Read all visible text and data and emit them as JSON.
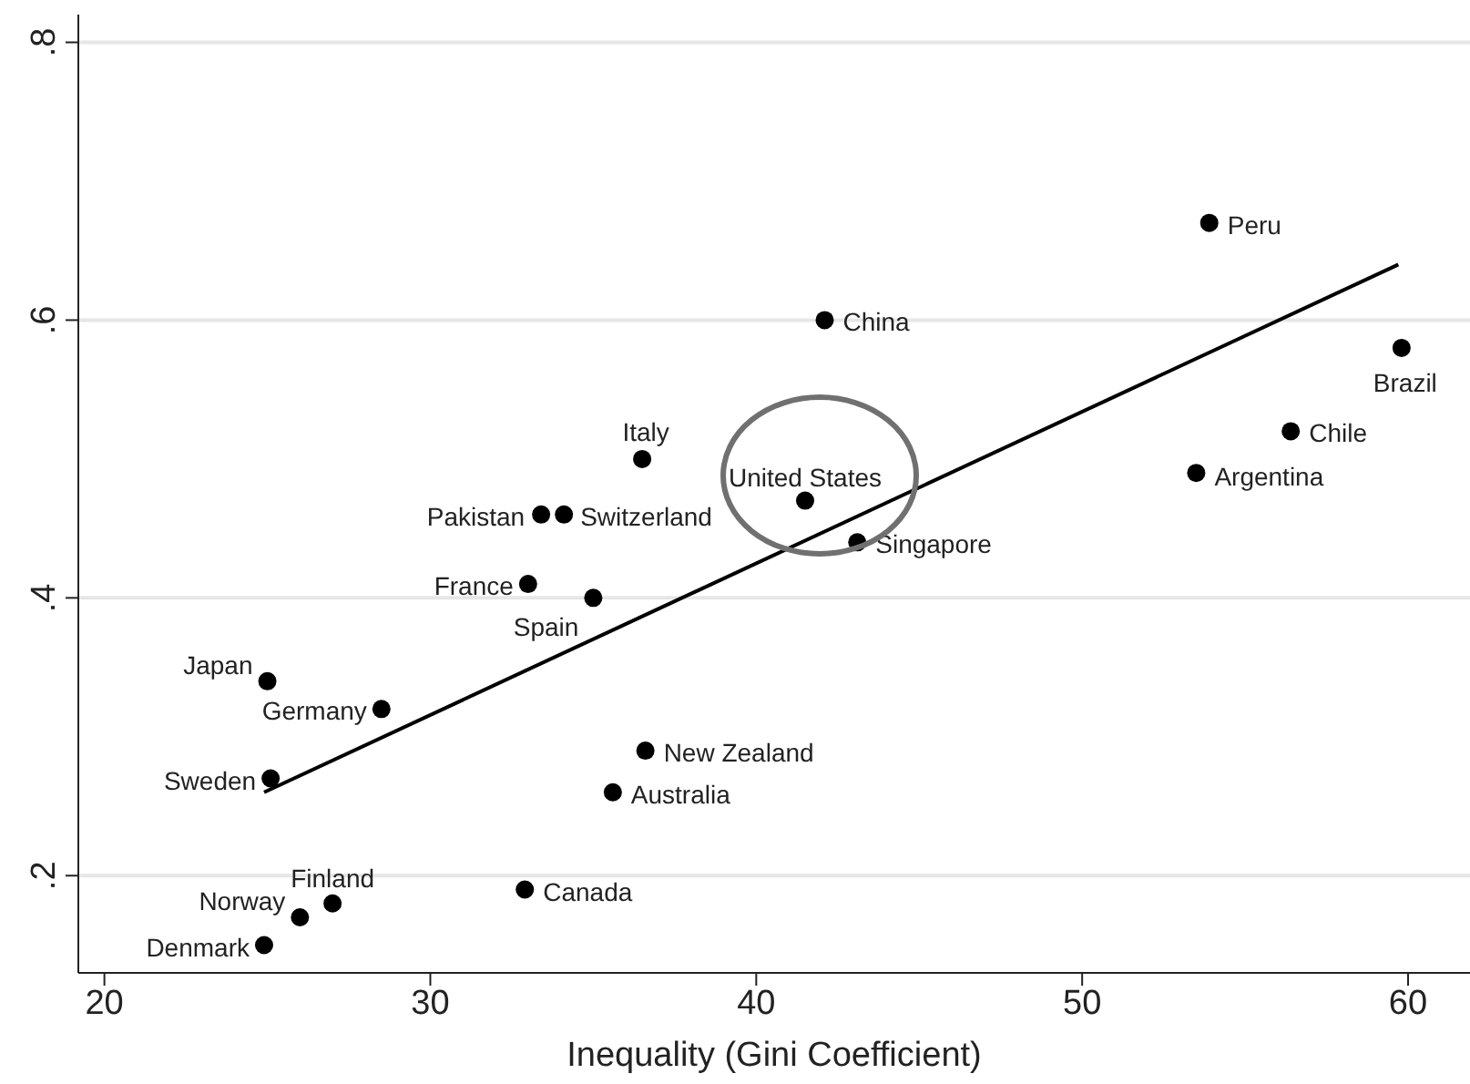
{
  "chart_data": {
    "type": "scatter",
    "xlabel": "Inequality (Gini Coefficient)",
    "xlim": [
      19.2,
      61.9
    ],
    "xticks": [
      20,
      30,
      40,
      50,
      60
    ],
    "ylim": [
      0.13,
      0.82
    ],
    "yticks": [
      {
        "value": 0.2,
        "label": ".2"
      },
      {
        "value": 0.4,
        "label": ".4"
      },
      {
        "value": 0.6,
        "label": ".6"
      },
      {
        "value": 0.8,
        "label": ".8"
      }
    ],
    "grid": "y",
    "marker": "circle",
    "series": [
      {
        "color": "#000000",
        "x": [
          53.9,
          42.1,
          59.8,
          56.4,
          53.5,
          36.5,
          41.5,
          33.4,
          34.1,
          43.1,
          33.0,
          35.0,
          25.0,
          28.5,
          25.1,
          36.6,
          35.6,
          32.9,
          27.0,
          26.0,
          24.9
        ],
        "values": [
          0.67,
          0.6,
          0.58,
          0.52,
          0.49,
          0.5,
          0.47,
          0.46,
          0.46,
          0.44,
          0.41,
          0.4,
          0.34,
          0.32,
          0.27,
          0.29,
          0.26,
          0.19,
          0.18,
          0.17,
          0.15
        ],
        "value_labels": [
          "Peru",
          "China",
          "Brazil",
          "Chile",
          "Argentina",
          "Italy",
          "United States",
          "Pakistan",
          "Switzerland",
          "Singapore",
          "France",
          "Spain",
          "Japan",
          "Germany",
          "Sweden",
          "New Zealand",
          "Australia",
          "Canada",
          "Finland",
          "Norway",
          "Denmark"
        ]
      },
      {
        "type": "line",
        "color": "#000000",
        "marker": "none",
        "x": [
          24.9,
          59.7
        ],
        "values": [
          0.26,
          0.64
        ]
      }
    ]
  }
}
